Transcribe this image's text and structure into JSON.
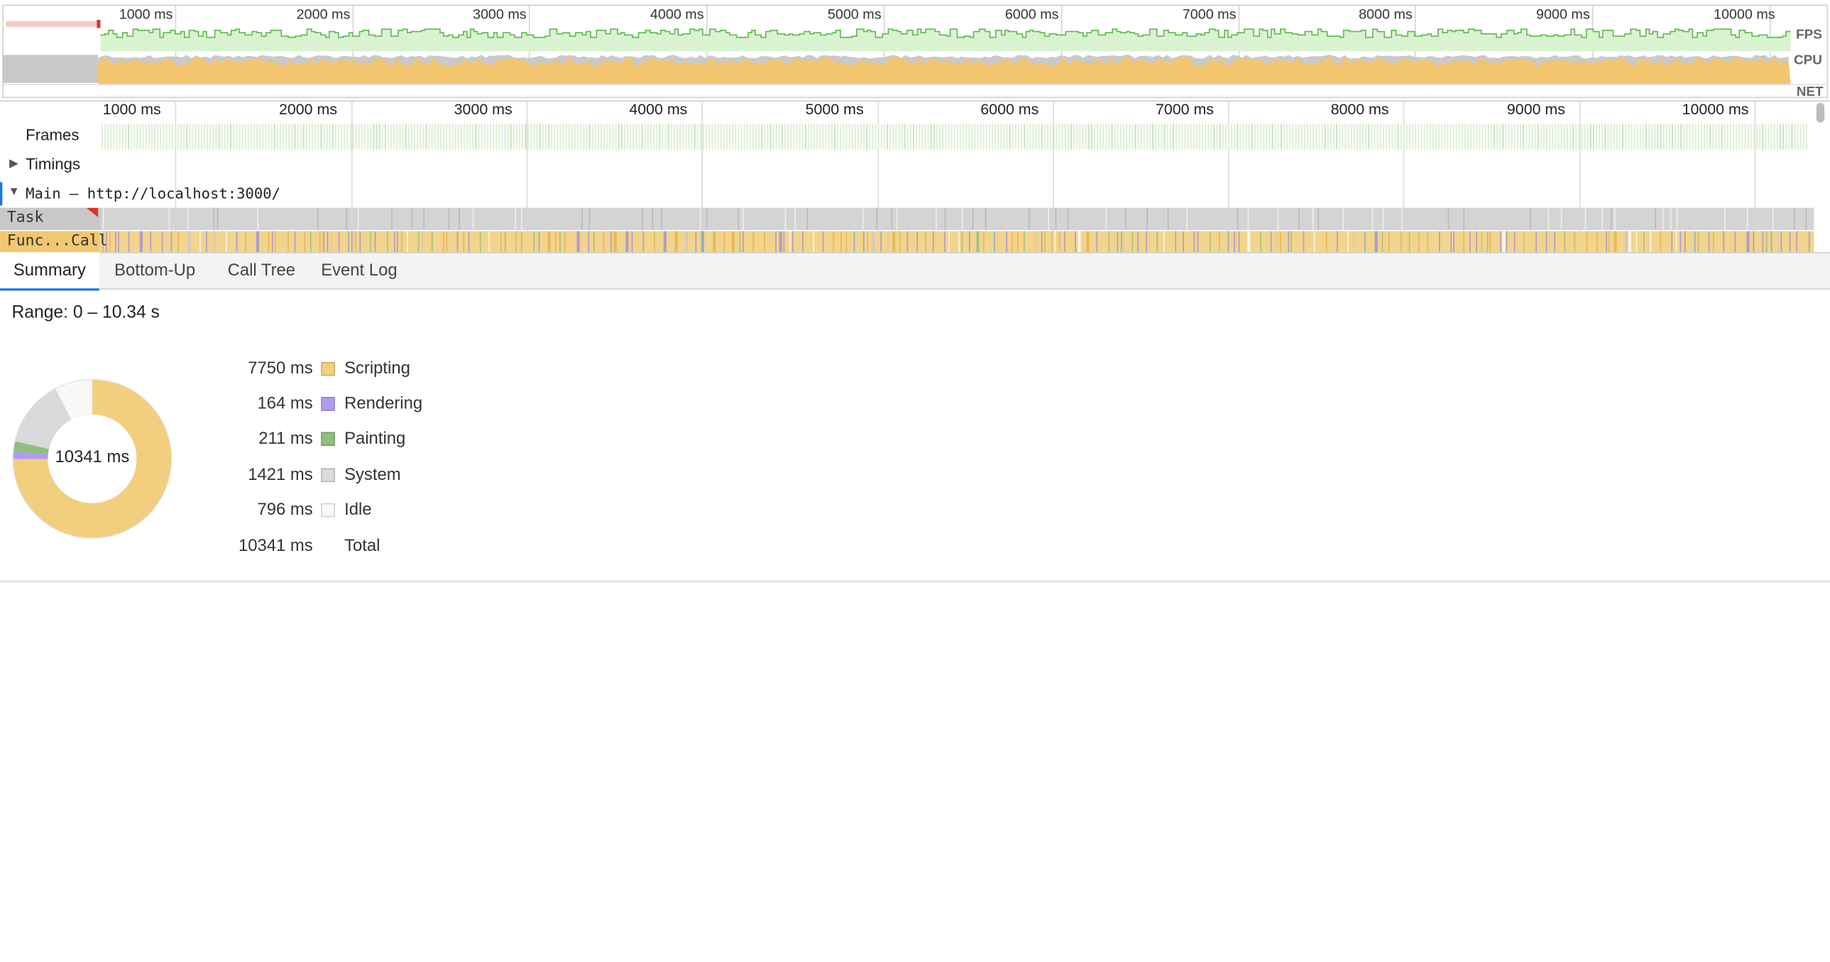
{
  "overview": {
    "ticks": [
      "1000 ms",
      "2000 ms",
      "3000 ms",
      "4000 ms",
      "5000 ms",
      "6000 ms",
      "7000 ms",
      "8000 ms",
      "9000 ms",
      "10000 ms"
    ],
    "labels": {
      "fps": "FPS",
      "cpu": "CPU",
      "net": "NET"
    }
  },
  "timeline": {
    "ticks": [
      "1000 ms",
      "2000 ms",
      "3000 ms",
      "4000 ms",
      "5000 ms",
      "6000 ms",
      "7000 ms",
      "8000 ms",
      "9000 ms",
      "10000 ms"
    ],
    "frames_label": "Frames",
    "timings_label": "Timings",
    "main_label": "Main — http://localhost:3000/",
    "task_label": "Task",
    "func_label": "Func...Call"
  },
  "tabs": [
    "Summary",
    "Bottom-Up",
    "Call Tree",
    "Event Log"
  ],
  "summary": {
    "range": "Range: 0 – 10.34 s",
    "total_center": "10341 ms",
    "categories": [
      {
        "value": "7750 ms",
        "name": "Scripting",
        "color": "#f2cf7f",
        "ms": 7750
      },
      {
        "value": "164 ms",
        "name": "Rendering",
        "color": "#af9cef",
        "ms": 164
      },
      {
        "value": "211 ms",
        "name": "Painting",
        "color": "#8fbf7f",
        "ms": 211
      },
      {
        "value": "1421 ms",
        "name": "System",
        "color": "#dadada",
        "ms": 1421
      },
      {
        "value": "796 ms",
        "name": "Idle",
        "color": "#f8f8f8",
        "ms": 796
      }
    ],
    "total": {
      "value": "10341 ms",
      "name": "Total"
    }
  }
}
